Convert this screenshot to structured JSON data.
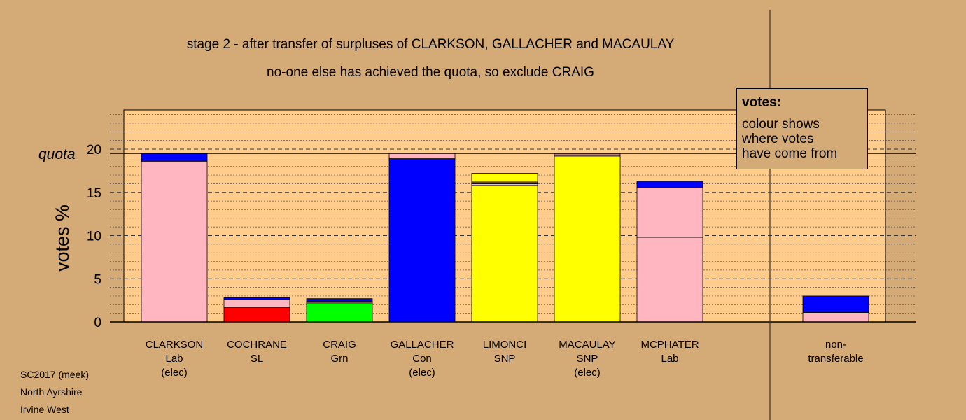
{
  "titles": {
    "line1": "stage 2 - after transfer of surpluses of CLARKSON, GALLACHER and MACAULAY",
    "line2": "no-one else has achieved the quota, so exclude CRAIG"
  },
  "legend": {
    "heading": "votes:",
    "lines": [
      "colour shows",
      "where votes",
      "have come from"
    ]
  },
  "footer": [
    "SC2017 (meek)",
    "North Ayrshire",
    "Irvine West"
  ],
  "colors": {
    "background": "#d4aa77",
    "plot_background": "#ffcc8c",
    "Lab": "#ffb6c1",
    "Con": "#0000ff",
    "SNP": "#ffff00",
    "SL": "#ff0000",
    "Grn": "#00ff00",
    "other": "#c08080"
  },
  "chart_data": {
    "type": "bar",
    "stacked": true,
    "ylabel": "votes %",
    "quota_label": "quota",
    "quota": 19.5,
    "ylim": [
      0,
      24.5
    ],
    "yticks": [
      0,
      5,
      10,
      15,
      20
    ],
    "grid": "dotted",
    "categories": [
      {
        "lines": [
          "CLARKSON",
          "Lab",
          "(elec)"
        ],
        "segments": [
          {
            "party": "Lab",
            "value": 18.6
          },
          {
            "party": "Con",
            "value": 0.9
          }
        ]
      },
      {
        "lines": [
          "COCHRANE",
          "SL"
        ],
        "segments": [
          {
            "party": "SL",
            "value": 1.7
          },
          {
            "party": "Lab",
            "value": 0.9
          },
          {
            "party": "Con",
            "value": 0.2
          }
        ]
      },
      {
        "lines": [
          "CRAIG",
          "Grn"
        ],
        "segments": [
          {
            "party": "Grn",
            "value": 2.2
          },
          {
            "party": "Lab",
            "value": 0.2
          },
          {
            "party": "Con",
            "value": 0.3
          }
        ]
      },
      {
        "lines": [
          "GALLACHER",
          "Con",
          "(elec)"
        ],
        "segments": [
          {
            "party": "Con",
            "value": 18.9
          },
          {
            "party": "Lab",
            "value": 0.6
          }
        ]
      },
      {
        "lines": [
          "LIMONCI",
          "SNP"
        ],
        "segments": [
          {
            "party": "SNP",
            "value": 15.8
          },
          {
            "party": "Lab",
            "value": 0.2
          },
          {
            "party": "other",
            "value": 0.2
          },
          {
            "party": "SNP",
            "value": 1.0
          }
        ]
      },
      {
        "lines": [
          "MACAULAY",
          "SNP",
          "(elec)"
        ],
        "segments": [
          {
            "party": "SNP",
            "value": 19.2
          },
          {
            "party": "Lab",
            "value": 0.1
          },
          {
            "party": "other",
            "value": 0.2
          }
        ]
      },
      {
        "lines": [
          "MCPHATER",
          "Lab"
        ],
        "segments": [
          {
            "party": "Lab",
            "value": 9.8
          },
          {
            "party": "Lab",
            "value": 5.8
          },
          {
            "party": "Con",
            "value": 0.7
          }
        ]
      }
    ],
    "nontransferable": {
      "lines": [
        "non-",
        "transferable"
      ],
      "segments": [
        {
          "party": "Lab",
          "value": 1.1
        },
        {
          "party": "Con",
          "value": 1.9
        }
      ]
    }
  }
}
